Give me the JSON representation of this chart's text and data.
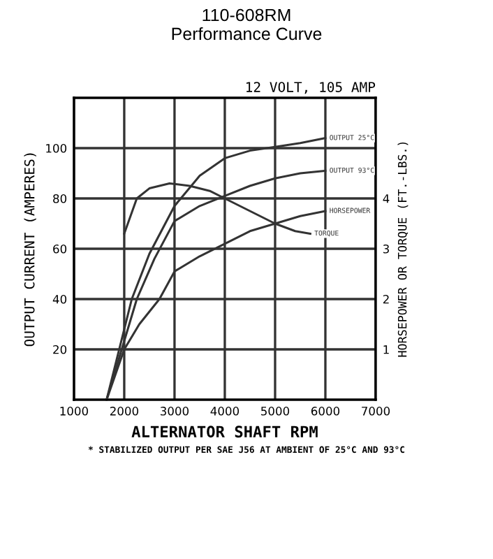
{
  "chart_data": {
    "type": "line",
    "title": "110-608RM\nPerformance Curve",
    "subtitle": "12 VOLT, 105 AMP",
    "xlabel": "ALTERNATOR SHAFT RPM",
    "ylabel": "OUTPUT CURRENT (AMPERES)",
    "y2label": "HORSEPOWER OR TORQUE (FT.-LBS.)",
    "annotations": [
      "* STABILIZED OUTPUT PER SAE J56 AT AMBIENT OF 25°C AND 93°C"
    ],
    "xlim": [
      1000,
      7000
    ],
    "xticks": [
      1000,
      2000,
      3000,
      4000,
      5000,
      6000,
      7000
    ],
    "ylim": [
      0,
      120
    ],
    "yticks": [
      20,
      40,
      60,
      80,
      100
    ],
    "y2lim": [
      0,
      6
    ],
    "y2ticks": [
      1,
      2,
      3,
      4
    ],
    "grid": true,
    "legend": false,
    "marker": "none",
    "line_style": "solid",
    "series": [
      {
        "name": "OUTPUT 25°C",
        "color": "#333333",
        "x": [
          1650,
          1900,
          2150,
          2500,
          3000,
          3500,
          4000,
          4500,
          5000,
          5500,
          6000
        ],
        "values": [
          0,
          20,
          40,
          58,
          77,
          89,
          96,
          99,
          100.5,
          102,
          104
        ]
      },
      {
        "name": "OUTPUT 93°C",
        "color": "#333333",
        "x": [
          1650,
          1950,
          2250,
          2600,
          3000,
          3500,
          4000,
          4500,
          5000,
          5500,
          6000
        ],
        "values": [
          0,
          20,
          40,
          56,
          71,
          77,
          81,
          85,
          88,
          90,
          91
        ]
      },
      {
        "name": "HORSEPOWER",
        "color": "#333333",
        "axis": "y2",
        "x": [
          1650,
          2000,
          2300,
          2700,
          3000,
          3500,
          4000,
          4500,
          5000,
          5500,
          6000
        ],
        "values": [
          0,
          1,
          1.5,
          2,
          2.55,
          2.85,
          3.1,
          3.35,
          3.5,
          3.65,
          3.75
        ]
      },
      {
        "name": "TORQUE",
        "color": "#333333",
        "axis": "y2",
        "x": [
          2000,
          2250,
          2500,
          2900,
          3300,
          3700,
          4000,
          4500,
          5000,
          5400,
          5700
        ],
        "values": [
          3.3,
          4.0,
          4.2,
          4.3,
          4.25,
          4.15,
          4.0,
          3.75,
          3.5,
          3.35,
          3.3
        ]
      }
    ]
  }
}
